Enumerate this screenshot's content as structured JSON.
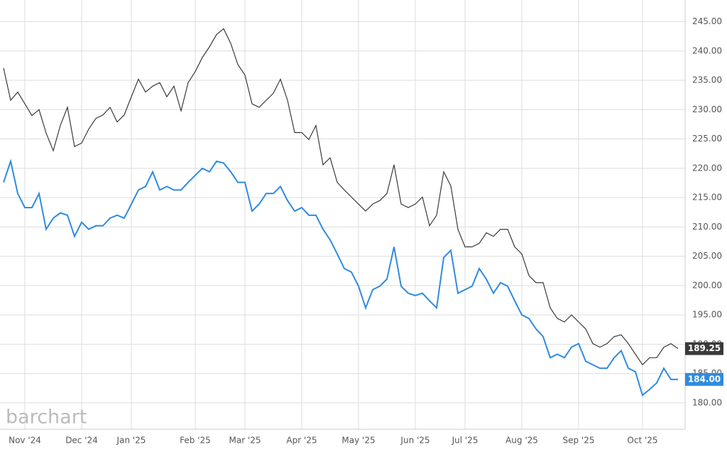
{
  "chart_data": {
    "type": "line",
    "watermark": "barchart",
    "categories": [
      null,
      null,
      null,
      "Nov '24",
      null,
      null,
      null,
      null,
      null,
      null,
      null,
      "Dec '24",
      null,
      null,
      null,
      null,
      null,
      null,
      "Jan '25",
      null,
      null,
      null,
      null,
      null,
      null,
      null,
      null,
      "Feb '25",
      null,
      null,
      null,
      null,
      null,
      null,
      "Mar '25",
      null,
      null,
      null,
      null,
      null,
      null,
      null,
      "Apr '25",
      null,
      null,
      null,
      null,
      null,
      null,
      null,
      "May '25",
      null,
      null,
      null,
      null,
      null,
      null,
      null,
      "Jun '25",
      null,
      null,
      null,
      null,
      null,
      null,
      "Jul '25",
      null,
      null,
      null,
      null,
      null,
      null,
      null,
      "Aug '25",
      null,
      null,
      null,
      null,
      null,
      null,
      null,
      "Sep '25",
      null,
      null,
      null,
      null,
      null,
      null,
      null,
      null,
      "Oct '25",
      null,
      null,
      null,
      null,
      null
    ],
    "series": [
      {
        "color": "#3a3a3a",
        "last_label": "189.25",
        "values": [
          237.1,
          231.6,
          233,
          231,
          229,
          230,
          226,
          223,
          227.3,
          230.4,
          223.7,
          224.3,
          226.7,
          228.5,
          229.1,
          230.4,
          227.9,
          229.1,
          232.2,
          235.2,
          233,
          234,
          234.6,
          232.2,
          234,
          229.8,
          234.6,
          236.5,
          238.9,
          240.7,
          242.8,
          243.8,
          241.3,
          237.7,
          235.9,
          231,
          230.4,
          231.6,
          232.8,
          235.2,
          231.6,
          226.1,
          226.1,
          224.9,
          227.3,
          220.6,
          221.8,
          217.6,
          216.3,
          215.1,
          213.9,
          212.7,
          213.9,
          214.5,
          215.7,
          220.6,
          213.9,
          213.3,
          213.9,
          215.1,
          210.2,
          212,
          219.4,
          217,
          209.6,
          206.6,
          206.6,
          207.2,
          209,
          208.4,
          209.6,
          209.6,
          206.6,
          205.4,
          201.7,
          200.5,
          200.5,
          196.2,
          194.4,
          193.8,
          195,
          193.8,
          192.6,
          190.1,
          189.5,
          190.1,
          191.3,
          191.6,
          190.1,
          188.3,
          186.5,
          187.7,
          187.7,
          189.5,
          190.1,
          189.25
        ]
      },
      {
        "color": "#2f8be0",
        "last_label": "184.00",
        "values": [
          217.6,
          221.2,
          215.7,
          213.3,
          213.3,
          215.7,
          209.6,
          211.5,
          212.4,
          212,
          208.4,
          210.8,
          209.6,
          210.2,
          210.2,
          211.5,
          212,
          211.5,
          213.9,
          216.3,
          216.9,
          219.4,
          216.3,
          216.9,
          216.3,
          216.3,
          217.6,
          218.8,
          220,
          219.4,
          221.2,
          220.9,
          219.4,
          217.6,
          217.6,
          212.7,
          213.9,
          215.7,
          215.7,
          216.9,
          214.5,
          212.7,
          213.3,
          212,
          212,
          209.6,
          207.8,
          205.4,
          202.9,
          202.3,
          199.9,
          196.2,
          199.3,
          199.9,
          201.1,
          206.6,
          199.9,
          198.7,
          198.3,
          198.7,
          197.4,
          196.2,
          204.8,
          206,
          198.7,
          199.3,
          199.9,
          202.9,
          201.1,
          198.7,
          200.5,
          199.9,
          197.4,
          195,
          194.4,
          192.6,
          191.3,
          187.7,
          188.3,
          187.7,
          189.5,
          190.1,
          187.1,
          186.5,
          185.9,
          185.9,
          187.7,
          188.9,
          185.9,
          185.3,
          181.3,
          182.3,
          183.4,
          185.9,
          184,
          184
        ]
      }
    ],
    "ylim": [
      175.5,
      248.7
    ],
    "yticks": [
      {
        "value": 180,
        "label": "180.00"
      },
      {
        "value": 185,
        "label": "185.00"
      },
      {
        "value": 190,
        "label": "190.00"
      },
      {
        "value": 195,
        "label": "195.00"
      },
      {
        "value": 200,
        "label": "200.00"
      },
      {
        "value": 205,
        "label": "205.00"
      },
      {
        "value": 210,
        "label": "210.00"
      },
      {
        "value": 215,
        "label": "215.00"
      },
      {
        "value": 220,
        "label": "220.00"
      },
      {
        "value": 225,
        "label": "225.00"
      },
      {
        "value": 230,
        "label": "230.00"
      },
      {
        "value": 235,
        "label": "235.00"
      },
      {
        "value": 240,
        "label": "240.00"
      },
      {
        "value": 245,
        "label": "245.00"
      }
    ],
    "grid": true
  }
}
